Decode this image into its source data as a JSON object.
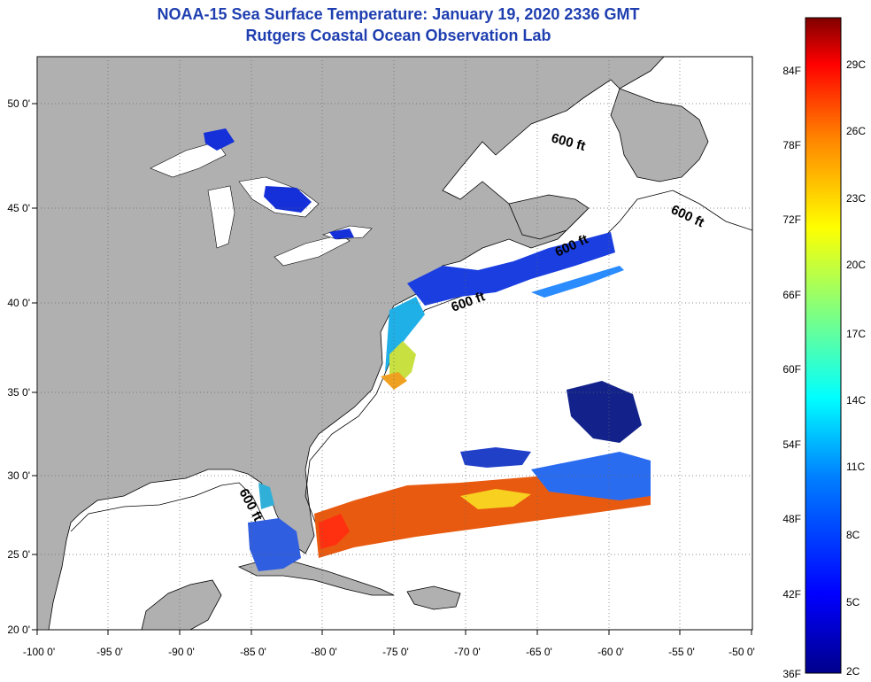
{
  "header": {
    "title": "NOAA-15 Sea Surface Temperature:  January 19, 2020 2336 GMT",
    "subtitle": "Rutgers Coastal Ocean Observation Lab"
  },
  "axes": {
    "lon_ticks": [
      "-100 0'",
      "-95 0'",
      "-90 0'",
      "-85 0'",
      "-80 0'",
      "-75 0'",
      "-70 0'",
      "-65 0'",
      "-60 0'",
      "-55 0'",
      "-50 0'"
    ],
    "lat_ticks": [
      "20 0'",
      "25 0'",
      "30 0'",
      "35 0'",
      "40 0'",
      "45 0'",
      "50 0'"
    ]
  },
  "contour_labels": [
    "600 ft",
    "600 ft",
    "600 ft",
    "600 ft",
    "600 ft"
  ],
  "colorbar": {
    "fahrenheit_labels": [
      "84F",
      "78F",
      "72F",
      "66F",
      "60F",
      "54F",
      "48F",
      "42F",
      "36F"
    ],
    "celsius_labels": [
      "29C",
      "26C",
      "23C",
      "20C",
      "17C",
      "14C",
      "11C",
      "8C",
      "5C",
      "2C"
    ],
    "colors": [
      "#00008b",
      "#0000ff",
      "#0080ff",
      "#00ffff",
      "#80ff80",
      "#ffff00",
      "#ff8000",
      "#ff0000",
      "#800000"
    ]
  },
  "colors": {
    "land": "#b0b0b0",
    "ocean_nodata": "#ffffff",
    "title": "#1f3fb0"
  }
}
